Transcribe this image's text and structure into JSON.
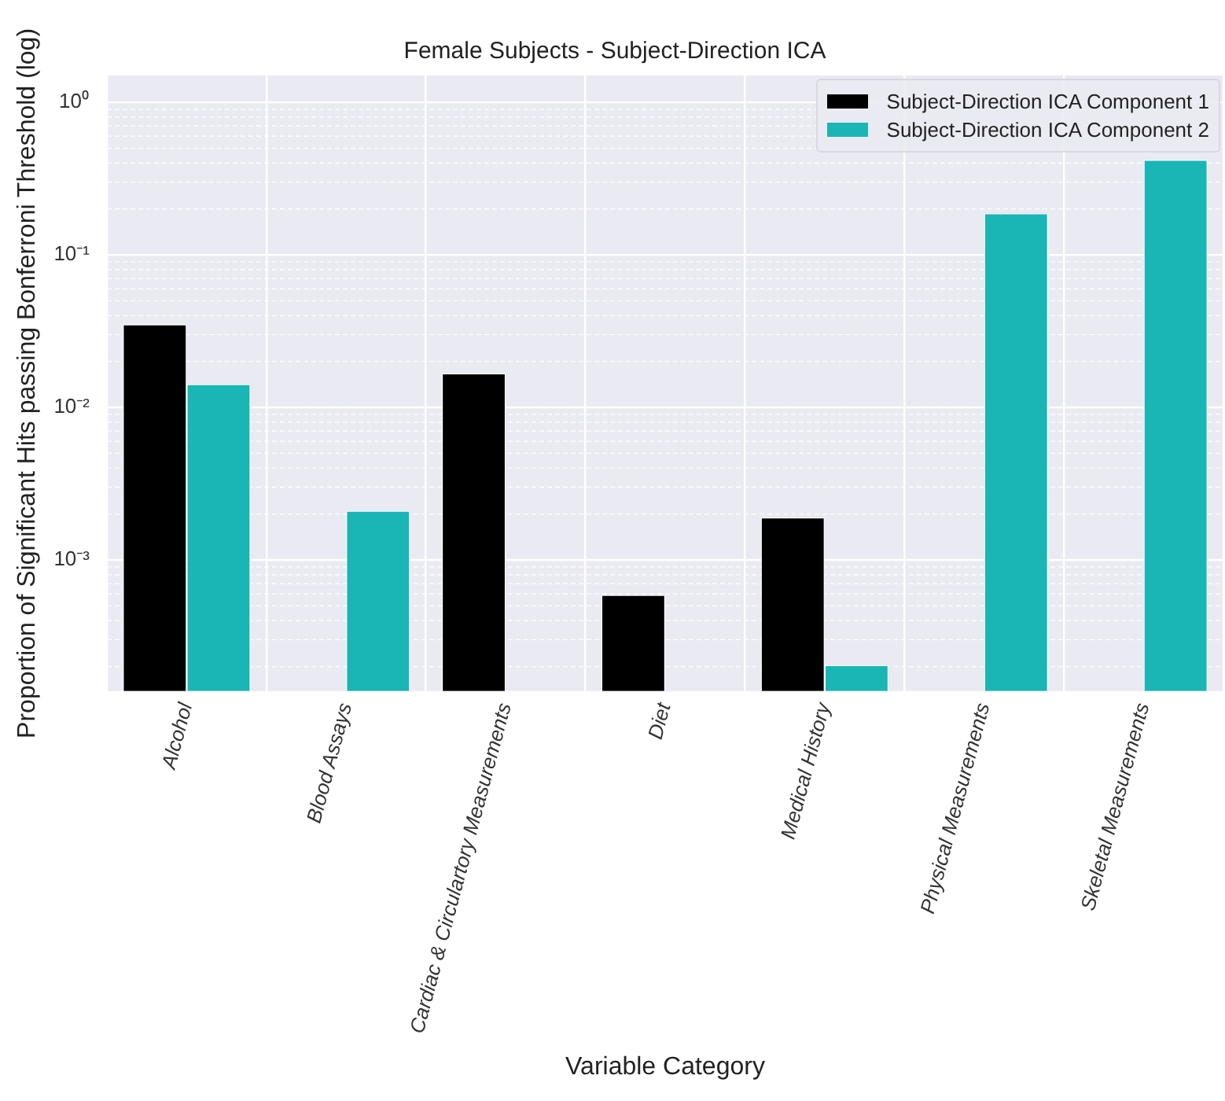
{
  "chart_data": {
    "type": "bar",
    "title": "Female Subjects - Subject-Direction ICA",
    "xlabel": "Variable Category",
    "ylabel": "Proportion of Significant Hits passing Bonferroni Threshold (log)",
    "categories": [
      "Alcohol",
      "Blood Assays",
      "Cardiac & Circulartory Measurements",
      "Diet",
      "Medical History",
      "Physical Measurements",
      "Skeletal Measurements"
    ],
    "series": [
      {
        "name": "Subject-Direction ICA Component 1",
        "color": "#000000",
        "values": [
          0.035,
          null,
          0.0167,
          0.00059,
          0.0019,
          null,
          null
        ]
      },
      {
        "name": "Subject-Direction ICA Component 2",
        "color": "#1ab5b5",
        "values": [
          0.0142,
          0.0021,
          null,
          null,
          0.000204,
          0.187,
          0.42
        ]
      }
    ],
    "log": "y",
    "ylim": [
      0.000138,
      1.5
    ],
    "yticks": [
      {
        "value": 0.0002,
        "label": null
      },
      {
        "value": 0.0003,
        "label": null
      },
      {
        "value": 0.0004,
        "label": null
      },
      {
        "value": 0.0005,
        "label": null
      },
      {
        "value": 0.0006,
        "label": null
      },
      {
        "value": 0.0007,
        "label": null
      },
      {
        "value": 0.0008,
        "label": null
      },
      {
        "value": 0.0009,
        "label": null
      },
      {
        "value": 0.001,
        "label": "10⁻³"
      },
      {
        "value": 0.002,
        "label": null
      },
      {
        "value": 0.003,
        "label": null
      },
      {
        "value": 0.004,
        "label": null
      },
      {
        "value": 0.005,
        "label": null
      },
      {
        "value": 0.006,
        "label": null
      },
      {
        "value": 0.007,
        "label": null
      },
      {
        "value": 0.008,
        "label": null
      },
      {
        "value": 0.009,
        "label": null
      },
      {
        "value": 0.01,
        "label": "10⁻²"
      },
      {
        "value": 0.02,
        "label": null
      },
      {
        "value": 0.03,
        "label": null
      },
      {
        "value": 0.04,
        "label": null
      },
      {
        "value": 0.05,
        "label": null
      },
      {
        "value": 0.06,
        "label": null
      },
      {
        "value": 0.07,
        "label": null
      },
      {
        "value": 0.08,
        "label": null
      },
      {
        "value": 0.09,
        "label": null
      },
      {
        "value": 0.1,
        "label": "10⁻¹"
      },
      {
        "value": 0.2,
        "label": null
      },
      {
        "value": 0.3,
        "label": null
      },
      {
        "value": 0.4,
        "label": null
      },
      {
        "value": 0.5,
        "label": null
      },
      {
        "value": 0.6,
        "label": null
      },
      {
        "value": 0.7,
        "label": null
      },
      {
        "value": 0.8,
        "label": null
      },
      {
        "value": 0.9,
        "label": null
      },
      {
        "value": 1,
        "label": "10⁰"
      }
    ],
    "grid": true,
    "legend": "top right"
  }
}
